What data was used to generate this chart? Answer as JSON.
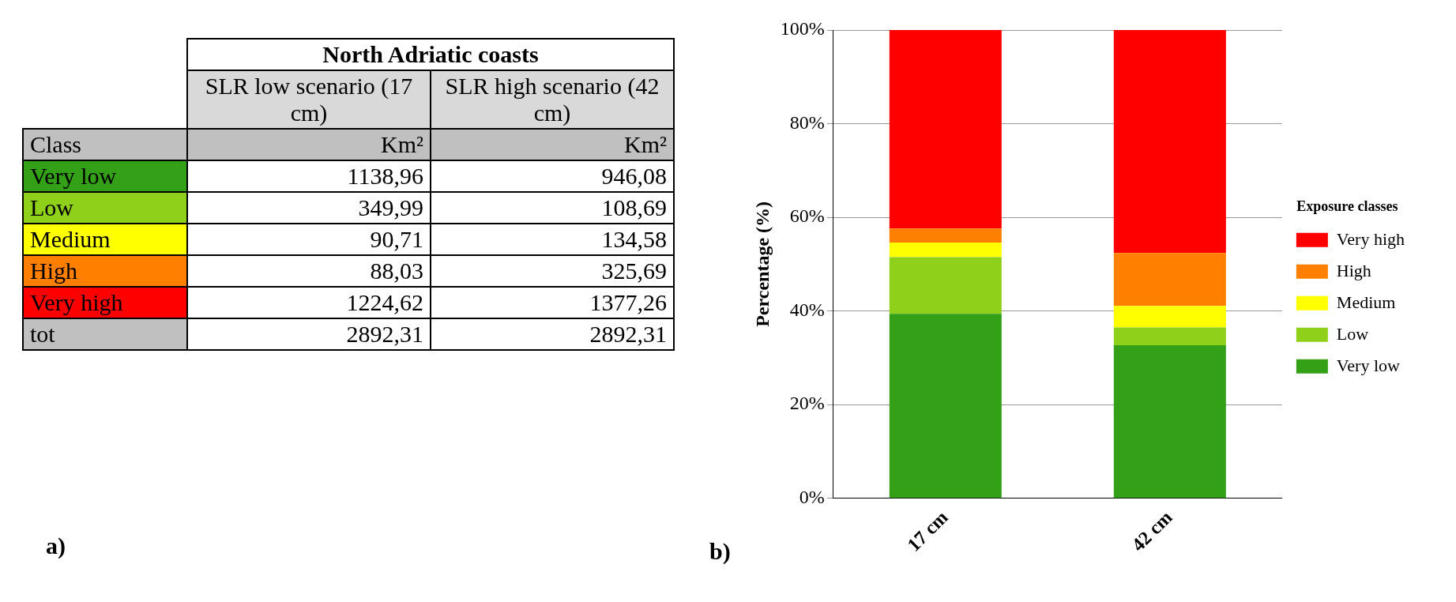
{
  "chart_data": [
    {
      "type": "other",
      "title": "North Adriatic coasts",
      "xlabel": "Class",
      "ylabel": "Km²",
      "categories": [
        "Very low",
        "Low",
        "Medium",
        "High",
        "Very high",
        "tot"
      ],
      "colors": [
        "#33a017",
        "#8fd11a",
        "#ffff00",
        "#ff8000",
        "#ff0000",
        "#c0c0c0"
      ],
      "series": [
        {
          "name": "SLR low scenario (17 cm)",
          "values": [
            1138.96,
            349.99,
            90.71,
            88.03,
            1224.62,
            2892.31
          ],
          "value_labels": [
            "1138,96",
            "349,99",
            "90,71",
            "88,03",
            "1224,62",
            "2892,31"
          ]
        },
        {
          "name": "SLR high scenario (42 cm)",
          "values": [
            946.08,
            108.69,
            134.58,
            325.69,
            1377.26,
            2892.31
          ],
          "value_labels": [
            "946,08",
            "108,69",
            "134,58",
            "325,69",
            "1377,26",
            "2892,31"
          ]
        }
      ],
      "annotations": [
        "a)"
      ]
    },
    {
      "type": "bar",
      "stacked": true,
      "categories": [
        "17 cm",
        "42 cm"
      ],
      "ylabel": "Percentage (%)",
      "legend_title": "Exposure classes",
      "legend": "right",
      "grid": "y",
      "ylim": [
        0,
        100
      ],
      "yticks": [
        {
          "value": 0,
          "label": "0%"
        },
        {
          "value": 20,
          "label": "20%"
        },
        {
          "value": 40,
          "label": "40%"
        },
        {
          "value": 60,
          "label": "60%"
        },
        {
          "value": 80,
          "label": "80%"
        },
        {
          "value": 100,
          "label": "100%"
        }
      ],
      "series": [
        {
          "name": "Very low",
          "color": "#33a017",
          "values": [
            39.4,
            32.7
          ]
        },
        {
          "name": "Low",
          "color": "#8fd11a",
          "values": [
            12.1,
            3.8
          ]
        },
        {
          "name": "Medium",
          "color": "#ffff00",
          "values": [
            3.1,
            4.6
          ]
        },
        {
          "name": "High",
          "color": "#ff8000",
          "values": [
            3.0,
            11.3
          ]
        },
        {
          "name": "Very high",
          "color": "#ff0000",
          "values": [
            42.4,
            47.6
          ]
        }
      ],
      "annotations": [
        "b)"
      ]
    }
  ]
}
